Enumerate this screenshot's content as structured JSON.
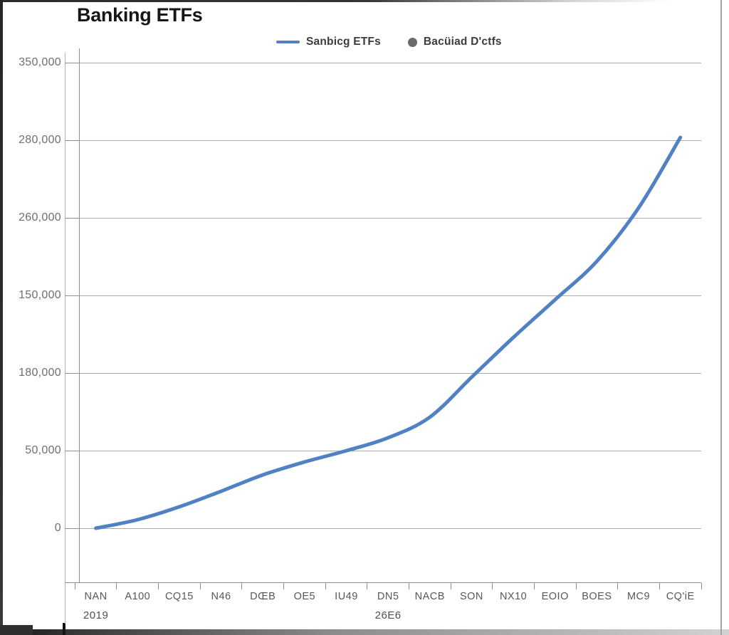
{
  "title": "Banking ETFs",
  "legend": {
    "items": [
      {
        "label": "Sanbicg ETFs",
        "marker": "line-swatch",
        "color": "#4f81c4"
      },
      {
        "label": "Bacüiad D'ctfs",
        "marker": "dot-swatch",
        "color": "#6a6a6a"
      }
    ]
  },
  "colors": {
    "line": "#4f81c4",
    "grid": "#acacac",
    "axis": "#8f8f8f",
    "y_label": "#6f6f6f",
    "x_label": "#575757",
    "title": "#161616"
  },
  "chart_data": {
    "type": "line",
    "title": "Banking ETFs",
    "legend_entries": [
      "Sanbicg ETFs",
      "Bacüiad D'ctfs"
    ],
    "legend_position": "top",
    "grid": true,
    "x_tick_labels": [
      "NAN",
      "A100",
      "CQ15",
      "N46",
      "DŒB",
      "OE5",
      "IU49",
      "DN5",
      "NACB",
      "SON",
      "NX10",
      "EOIO",
      "BOES",
      "MC9",
      "CQ'iE"
    ],
    "x_year_labels": [
      {
        "text": "2019",
        "index": 0
      },
      {
        "text": "26E6",
        "index": 7
      }
    ],
    "y_tick_labels": [
      "350,000",
      "280,000",
      "260,000",
      "150,000",
      "180,000",
      "50,000",
      "0"
    ],
    "ylim": [
      0,
      350000
    ],
    "series": [
      {
        "name": "Sanbicg ETFs",
        "values": [
          0,
          6400,
          16100,
          27800,
          40100,
          49800,
          58300,
          68000,
          83500,
          113500,
          143400,
          171800,
          200700,
          240800,
          293800
        ]
      }
    ]
  }
}
